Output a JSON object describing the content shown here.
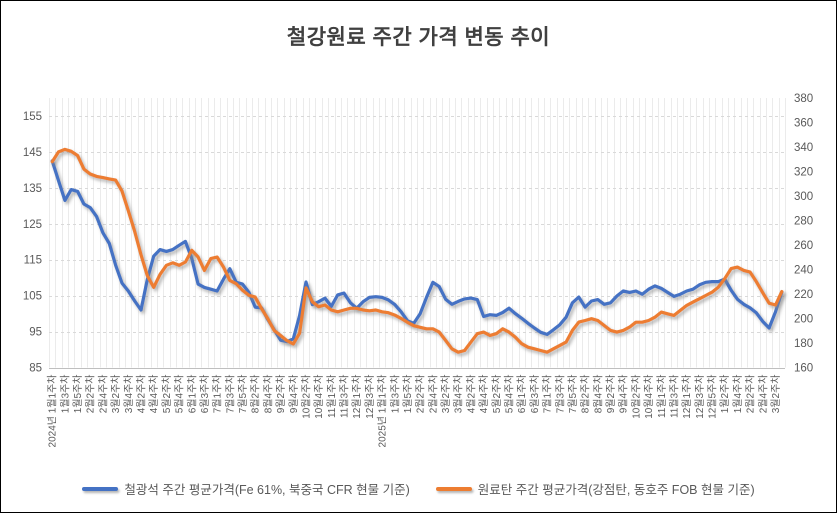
{
  "chart_data": {
    "type": "line",
    "title": "철강원료 주간 가격 변동 추이",
    "legend_position": "bottom",
    "grid": {
      "horizontal": "dashed",
      "vertical": "per-week"
    },
    "left_axis": {
      "min": 85,
      "max": 160,
      "ticks": [
        85,
        95,
        105,
        115,
        125,
        135,
        145,
        155
      ]
    },
    "right_axis": {
      "min": 160,
      "max": 380,
      "ticks": [
        160,
        180,
        200,
        220,
        240,
        260,
        280,
        300,
        320,
        340,
        360,
        380
      ]
    },
    "label_every": 2,
    "x_labels": [
      "2024년 1월1주차",
      "1월3주차",
      "1월5주차",
      "2월2주차",
      "2월4주차",
      "3월2주차",
      "3월4주차",
      "4월2주차",
      "4월4주차",
      "5월2주차",
      "5월4주차",
      "6월1주차",
      "6월3주차",
      "7월1주차",
      "7월3주차",
      "7월5주차",
      "8월2주차",
      "8월4주차",
      "9월2주차",
      "9월4주차",
      "10월2주차",
      "10월4주차",
      "11월1주차",
      "11월3주차",
      "12월1주차",
      "12월3주차",
      "2025년 1월1주차",
      "1월3주차",
      "1월5주차",
      "2월2주차",
      "2월4주차",
      "3월2주차",
      "3월4주차",
      "4월2주차",
      "4월4주차",
      "5월2주차",
      "5월4주차",
      "6월1주차",
      "6월3주차",
      "7월1주차",
      "7월3주차",
      "7월5주차",
      "8월2주차",
      "8월4주차",
      "9월2주차",
      "9월4주차",
      "10월2주차",
      "10월4주차",
      "11월1주차",
      "11월3주차",
      "12월1주차",
      "12월3주차",
      "12월5주차",
      "1월2주차",
      "1월4주차",
      "2월2주차",
      "2월4주차",
      "3월2주차"
    ],
    "series": [
      {
        "name": "철광석 주간 평균가격(Fe 61%, 북중국 CFR 현물 기준)",
        "axis": "left",
        "color": "#4472C4",
        "values": [
          142.5,
          137,
          131.5,
          134.5,
          134,
          130.5,
          129.5,
          127,
          122.5,
          119.5,
          113.5,
          108.5,
          106.3,
          103.5,
          101,
          109.5,
          116,
          117.8,
          117.3,
          117.8,
          119,
          120.1,
          115.3,
          108.2,
          107.3,
          106.8,
          106.3,
          109.6,
          112.5,
          108.7,
          108.2,
          105.9,
          101.8,
          101.6,
          98.3,
          95.5,
          92.6,
          92.2,
          93,
          99.5,
          108.8,
          102.5,
          103.3,
          104.3,
          102,
          105.2,
          105.7,
          103,
          101.5,
          103.3,
          104.5,
          104.7,
          104.5,
          103.8,
          102.5,
          100.5,
          98,
          97.3,
          100,
          104.5,
          108.7,
          107.5,
          104,
          102.6,
          103.4,
          104.1,
          104.3,
          103.9,
          99.2,
          99.7,
          99.5,
          100.3,
          101.5,
          100,
          98.7,
          97.3,
          96,
          94.8,
          94.2,
          95.5,
          96.9,
          99,
          103,
          104.6,
          101.8,
          103.5,
          103.9,
          102.6,
          103,
          104.9,
          106.3,
          105.9,
          106.3,
          105.4,
          106.8,
          107.7,
          107,
          105.9,
          104.8,
          105.4,
          106.3,
          106.8,
          108,
          108.7,
          108.9,
          108.9,
          109.6,
          106.5,
          104,
          102.6,
          101.6,
          100.2,
          97.8,
          96,
          100.5,
          106
        ]
      },
      {
        "name": "원료탄 주간 평균가격(강점탄, 동호주 FOB 현물 기준)",
        "axis": "right",
        "color": "#ED7D31",
        "values": [
          328,
          336,
          338,
          336.5,
          333,
          322,
          318,
          316,
          315,
          314,
          313,
          304,
          288,
          271,
          252,
          235,
          225.5,
          236,
          243.4,
          245.5,
          243.4,
          246.1,
          255.7,
          250.2,
          239.3,
          248.9,
          250.2,
          242,
          231.1,
          228.4,
          223,
          218.9,
          217.5,
          208,
          199.7,
          190.2,
          186.1,
          182,
          179.3,
          188,
          225,
          213.7,
          209.6,
          211,
          206.9,
          205.5,
          206.9,
          208.3,
          208.3,
          206.9,
          206.3,
          206.9,
          205.5,
          204.7,
          202.8,
          200.1,
          196.9,
          194.1,
          192.8,
          191.6,
          191.6,
          188.9,
          182.1,
          175.3,
          172.5,
          173.9,
          180.7,
          187.6,
          188.9,
          186.2,
          187.6,
          191.6,
          188.9,
          184.8,
          179.4,
          176.6,
          175.3,
          173.9,
          172.5,
          175.3,
          178,
          180.7,
          190.3,
          197.1,
          198.4,
          199.8,
          198.4,
          194.3,
          190.3,
          188.9,
          190.3,
          193,
          197,
          197,
          198.4,
          201.1,
          205.2,
          203.8,
          202.5,
          206.6,
          210.7,
          213.4,
          216.1,
          218.8,
          221.5,
          225.6,
          232.5,
          240.7,
          242,
          239.3,
          237.9,
          230,
          221,
          212.5,
          211,
          222
        ]
      }
    ]
  }
}
